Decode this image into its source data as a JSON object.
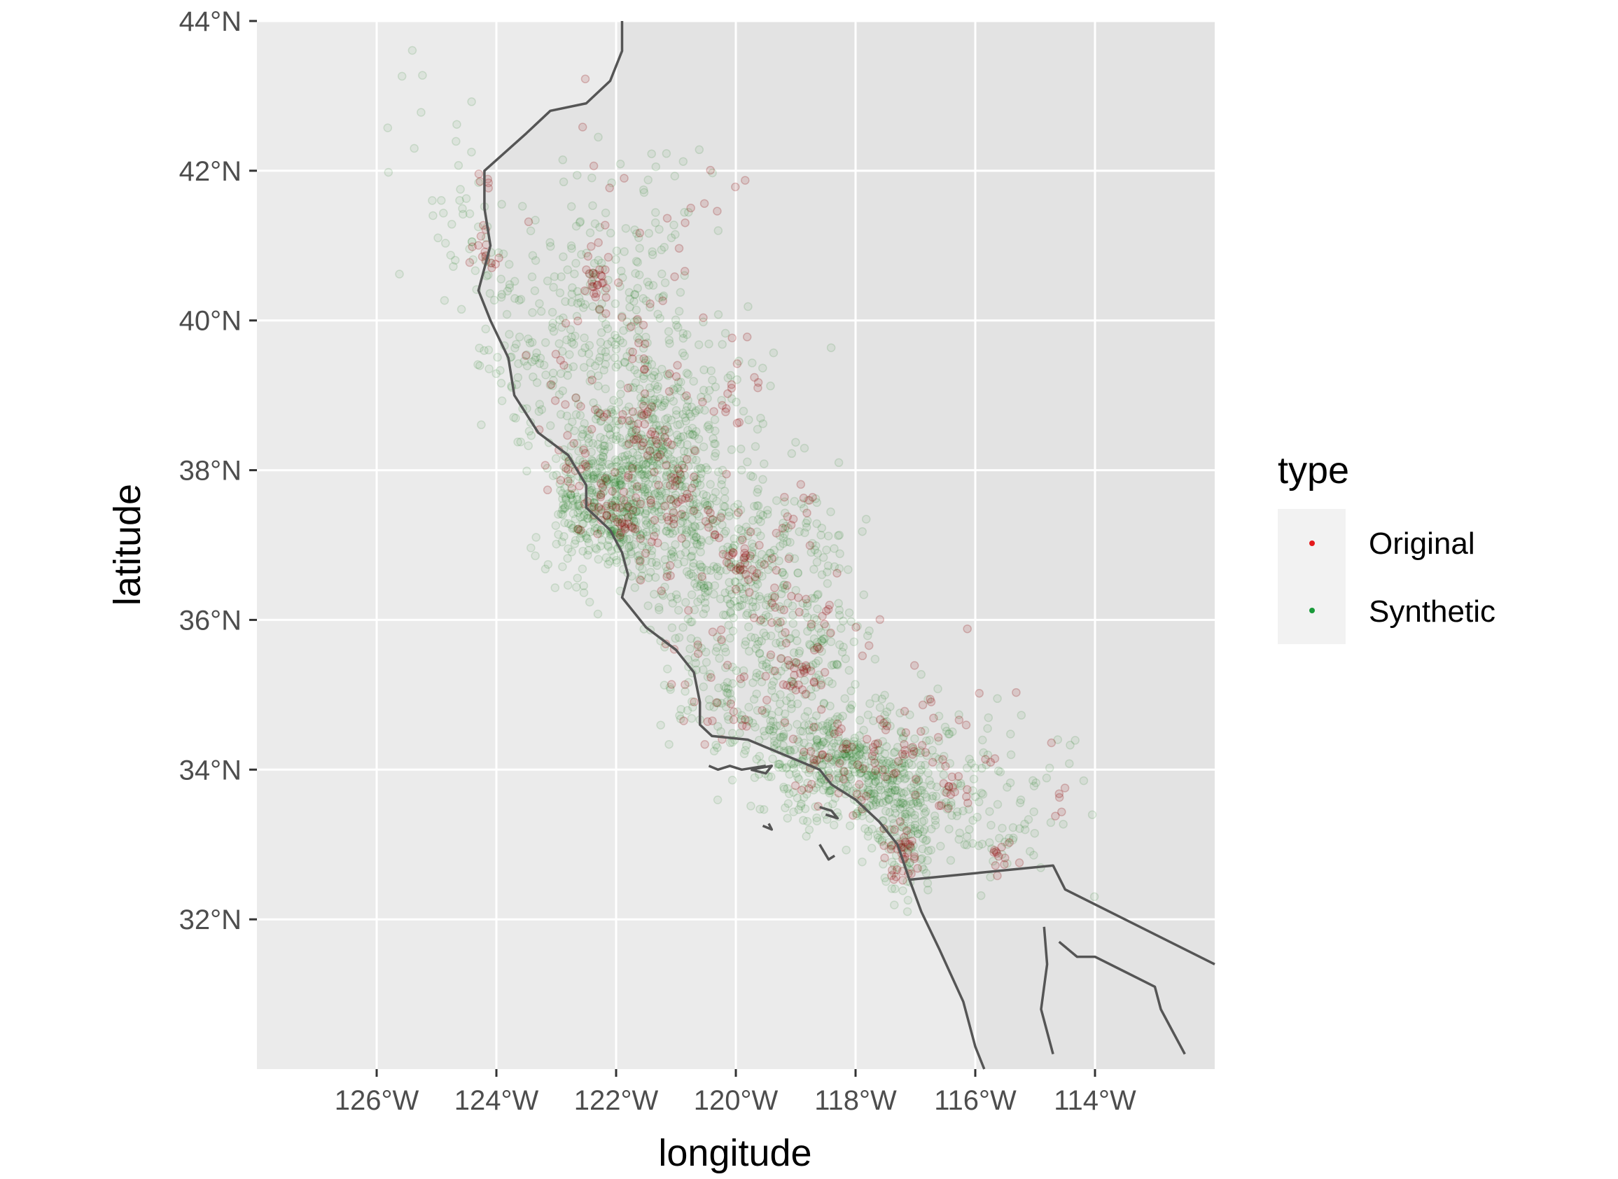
{
  "chart_data": {
    "type": "scatter",
    "xlabel": "longitude",
    "ylabel": "latitude",
    "xlim": [
      -128,
      -112
    ],
    "ylim": [
      30,
      44
    ],
    "x_ticks": [
      {
        "value": -126,
        "label": "126°W"
      },
      {
        "value": -124,
        "label": "124°W"
      },
      {
        "value": -122,
        "label": "122°W"
      },
      {
        "value": -120,
        "label": "120°W"
      },
      {
        "value": -118,
        "label": "118°W"
      },
      {
        "value": -116,
        "label": "116°W"
      },
      {
        "value": -114,
        "label": "114°W"
      }
    ],
    "y_ticks": [
      {
        "value": 44,
        "label": "44°N"
      },
      {
        "value": 42,
        "label": "42°N"
      },
      {
        "value": 40,
        "label": "40°N"
      },
      {
        "value": 38,
        "label": "38°N"
      },
      {
        "value": 36,
        "label": "36°N"
      },
      {
        "value": 34,
        "label": "34°N"
      },
      {
        "value": 32,
        "label": "32°N"
      }
    ],
    "grid": true,
    "legend": {
      "title": "type",
      "placement": "right",
      "entries": [
        {
          "label": "Original",
          "color": "#e41a1c"
        },
        {
          "label": "Synthetic",
          "color": "#1a9a3a"
        }
      ]
    },
    "series": [
      {
        "name": "Original",
        "color": "#8b0000",
        "clusters": [
          [
            -122.4,
            37.75,
            0.35,
            0.35,
            40
          ],
          [
            -121.9,
            37.35,
            0.2,
            0.2,
            25
          ],
          [
            -122.3,
            40.55,
            0.15,
            0.2,
            25
          ],
          [
            -121.5,
            38.55,
            0.2,
            0.25,
            30
          ],
          [
            -121.0,
            37.7,
            0.2,
            0.2,
            20
          ],
          [
            -119.8,
            36.8,
            0.25,
            0.25,
            30
          ],
          [
            -119.1,
            36.3,
            0.25,
            0.3,
            20
          ],
          [
            -119.0,
            35.4,
            0.2,
            0.2,
            25
          ],
          [
            -118.3,
            34.05,
            0.35,
            0.25,
            40
          ],
          [
            -117.2,
            32.8,
            0.15,
            0.2,
            35
          ],
          [
            -117.4,
            34.2,
            0.3,
            0.3,
            25
          ],
          [
            -116.4,
            33.8,
            0.2,
            0.15,
            15
          ],
          [
            -115.6,
            32.85,
            0.15,
            0.15,
            12
          ],
          [
            -124.15,
            40.8,
            0.15,
            0.2,
            15
          ],
          [
            -124.2,
            41.8,
            0.1,
            0.1,
            5
          ],
          [
            -120.7,
            35.35,
            0.3,
            0.3,
            15
          ],
          [
            -120.0,
            34.7,
            0.35,
            0.2,
            15
          ],
          [
            -120.0,
            39.2,
            0.35,
            0.3,
            15
          ],
          [
            -122.8,
            38.9,
            0.3,
            0.3,
            15
          ],
          [
            -121.7,
            39.7,
            0.3,
            0.3,
            15
          ],
          [
            -119.0,
            37.6,
            0.25,
            0.3,
            10
          ],
          [
            -120.6,
            37.2,
            0.3,
            0.3,
            12
          ],
          [
            -121.2,
            38.0,
            0.35,
            0.3,
            20
          ],
          [
            -114.6,
            33.6,
            0.1,
            0.3,
            6
          ],
          [
            -121.4,
            36.7,
            0.25,
            0.25,
            10
          ],
          [
            -121.3,
            41.0,
            1.0,
            0.8,
            30
          ],
          [
            -118.5,
            35.5,
            0.6,
            0.6,
            20
          ],
          [
            -116.5,
            34.5,
            0.6,
            0.5,
            20
          ]
        ]
      },
      {
        "name": "Synthetic",
        "color": "#1f7a1f",
        "clusters": [
          [
            -122.3,
            37.7,
            0.45,
            0.5,
            300
          ],
          [
            -122.0,
            37.3,
            0.4,
            0.4,
            120
          ],
          [
            -121.4,
            38.5,
            0.45,
            0.55,
            200
          ],
          [
            -121.0,
            37.6,
            0.55,
            0.5,
            150
          ],
          [
            -120.6,
            37.0,
            0.6,
            0.55,
            150
          ],
          [
            -119.8,
            36.5,
            0.6,
            0.55,
            140
          ],
          [
            -119.1,
            35.8,
            0.55,
            0.55,
            120
          ],
          [
            -118.2,
            34.0,
            0.7,
            0.35,
            330
          ],
          [
            -117.3,
            33.6,
            0.5,
            0.45,
            150
          ],
          [
            -117.1,
            32.9,
            0.3,
            0.3,
            60
          ],
          [
            -121.9,
            39.7,
            0.55,
            0.6,
            120
          ],
          [
            -122.5,
            40.6,
            0.5,
            0.5,
            60
          ],
          [
            -123.4,
            39.2,
            0.45,
            0.45,
            60
          ],
          [
            -124.0,
            40.6,
            0.35,
            0.5,
            40
          ],
          [
            -124.6,
            41.3,
            0.3,
            0.4,
            25
          ],
          [
            -120.5,
            35.2,
            0.5,
            0.35,
            60
          ],
          [
            -119.4,
            34.5,
            0.6,
            0.25,
            80
          ],
          [
            -116.3,
            33.8,
            0.5,
            0.4,
            60
          ],
          [
            -115.6,
            33.1,
            0.5,
            0.35,
            40
          ],
          [
            -120.3,
            39.0,
            0.5,
            0.5,
            50
          ],
          [
            -118.7,
            37.1,
            0.5,
            0.5,
            40
          ],
          [
            -121.5,
            41.1,
            0.8,
            0.7,
            50
          ],
          [
            -118.3,
            35.3,
            0.6,
            0.6,
            50
          ],
          [
            -114.7,
            33.9,
            0.5,
            0.5,
            20
          ],
          [
            -125.0,
            42.5,
            0.5,
            0.6,
            12
          ]
        ]
      }
    ]
  },
  "map_lines": {
    "stroke": "#555555",
    "coast": [
      [
        -121.9,
        44.0
      ],
      [
        -121.9,
        43.6
      ],
      [
        -122.1,
        43.2
      ],
      [
        -122.5,
        42.9
      ],
      [
        -123.1,
        42.8
      ],
      [
        -123.5,
        42.5
      ],
      [
        -124.2,
        42.0
      ],
      [
        -124.2,
        41.5
      ],
      [
        -124.1,
        41.0
      ],
      [
        -124.3,
        40.4
      ],
      [
        -124.1,
        40.0
      ],
      [
        -123.8,
        39.5
      ],
      [
        -123.7,
        39.0
      ],
      [
        -123.3,
        38.5
      ],
      [
        -122.8,
        38.2
      ],
      [
        -122.5,
        37.8
      ],
      [
        -122.5,
        37.5
      ],
      [
        -122.1,
        37.2
      ],
      [
        -121.9,
        36.9
      ],
      [
        -121.8,
        36.6
      ],
      [
        -121.9,
        36.3
      ],
      [
        -121.5,
        35.9
      ],
      [
        -121.0,
        35.6
      ],
      [
        -120.7,
        35.3
      ],
      [
        -120.6,
        34.9
      ],
      [
        -120.6,
        34.6
      ],
      [
        -120.4,
        34.45
      ],
      [
        -119.8,
        34.4
      ],
      [
        -119.2,
        34.2
      ],
      [
        -118.6,
        34.0
      ],
      [
        -118.4,
        33.8
      ],
      [
        -118.0,
        33.6
      ],
      [
        -117.6,
        33.3
      ],
      [
        -117.3,
        33.0
      ],
      [
        -117.1,
        32.53
      ],
      [
        -116.9,
        32.1
      ],
      [
        -116.6,
        31.6
      ],
      [
        -116.2,
        30.9
      ],
      [
        -116.0,
        30.3
      ],
      [
        -115.85,
        30.0
      ]
    ],
    "border_west": [
      [
        -117.1,
        32.53
      ],
      [
        -114.7,
        32.72
      ],
      [
        -114.5,
        32.4
      ],
      [
        -112.0,
        31.4
      ]
    ],
    "gulf_coast": [
      [
        -114.85,
        31.9
      ],
      [
        -114.8,
        31.4
      ],
      [
        -114.9,
        30.8
      ],
      [
        -114.7,
        30.2
      ]
    ],
    "gulf_east": [
      [
        -114.6,
        31.7
      ],
      [
        -114.3,
        31.5
      ],
      [
        -114.0,
        31.5
      ],
      [
        -113.5,
        31.3
      ],
      [
        -113.0,
        31.1
      ],
      [
        -112.9,
        30.8
      ],
      [
        -112.7,
        30.5
      ],
      [
        -112.5,
        30.2
      ]
    ],
    "islands": [
      [
        [
          -120.45,
          34.05
        ],
        [
          -120.3,
          34.0
        ],
        [
          -120.1,
          34.05
        ],
        [
          -119.9,
          34.0
        ],
        [
          -119.5,
          34.05
        ]
      ],
      [
        [
          -119.75,
          34.0
        ],
        [
          -119.4,
          34.05
        ],
        [
          -119.5,
          33.95
        ],
        [
          -119.75,
          34.0
        ]
      ],
      [
        [
          -118.6,
          33.5
        ],
        [
          -118.4,
          33.45
        ],
        [
          -118.3,
          33.35
        ],
        [
          -118.5,
          33.4
        ]
      ],
      [
        [
          -118.6,
          33.0
        ],
        [
          -118.45,
          32.8
        ],
        [
          -118.35,
          32.85
        ]
      ],
      [
        [
          -119.55,
          33.25
        ],
        [
          -119.4,
          33.2
        ],
        [
          -119.45,
          33.28
        ]
      ]
    ]
  }
}
